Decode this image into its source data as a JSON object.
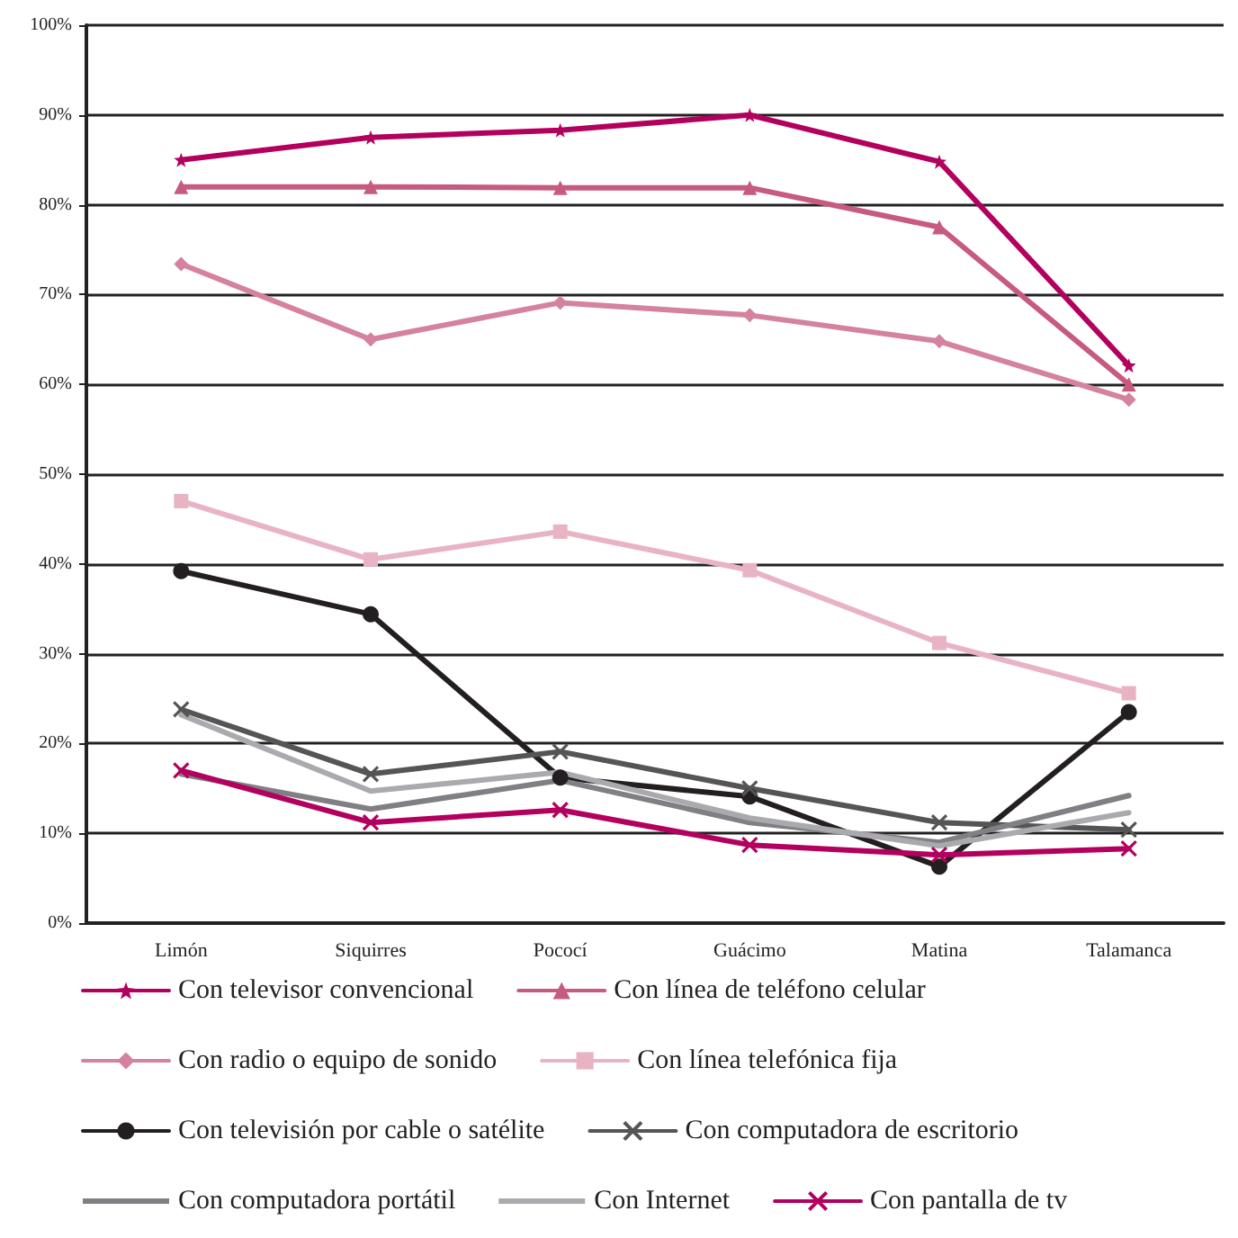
{
  "chart_data": {
    "type": "line",
    "categories": [
      "Limón",
      "Siquirres",
      "Pococí",
      "Guácimo",
      "Matina",
      "Talamanca"
    ],
    "ylim": [
      0,
      100
    ],
    "yticks": [
      {
        "value": 0,
        "label": "0%"
      },
      {
        "value": 10,
        "label": "10%"
      },
      {
        "value": 20,
        "label": "20%"
      },
      {
        "value": 30,
        "label": "30%"
      },
      {
        "value": 40,
        "label": "40%"
      },
      {
        "value": 50,
        "label": "50%"
      },
      {
        "value": 60,
        "label": "60%"
      },
      {
        "value": 70,
        "label": "70%"
      },
      {
        "value": 80,
        "label": "80%"
      },
      {
        "value": 90,
        "label": "90%"
      },
      {
        "value": 100,
        "label": "100%"
      }
    ],
    "grid": "y",
    "legend": "bottom",
    "line_style": "solid",
    "series": [
      {
        "name": "Con televisor convencional",
        "color": "#b3005e",
        "marker": "star",
        "values": [
          85.0,
          87.5,
          88.3,
          90.0,
          84.8,
          62.1
        ]
      },
      {
        "name": "Con línea de teléfono celular",
        "color": "#c75a80",
        "marker": "triangle",
        "values": [
          82.0,
          82.0,
          81.9,
          81.9,
          77.5,
          60.0
        ]
      },
      {
        "name": "Con radio o equipo de sonido",
        "color": "#d4829f",
        "marker": "diamond",
        "values": [
          73.4,
          65.0,
          69.1,
          67.7,
          64.8,
          58.3
        ]
      },
      {
        "name": "Con línea telefónica fija",
        "color": "#e8b4c4",
        "marker": "square",
        "values": [
          47.0,
          40.5,
          43.6,
          39.3,
          31.2,
          25.6
        ]
      },
      {
        "name": "Con televisión por cable o satélite",
        "color": "#231f20",
        "marker": "circle",
        "values": [
          39.2,
          34.4,
          16.2,
          14.1,
          6.3,
          23.5
        ]
      },
      {
        "name": "Con computadora de escritorio",
        "color": "#555555",
        "marker": "cross",
        "values": [
          23.8,
          16.6,
          19.1,
          15.0,
          11.2,
          10.4
        ]
      },
      {
        "name": "Con computadora portátil",
        "color": "#7f7f84",
        "marker": "none",
        "values": [
          16.6,
          12.7,
          15.9,
          11.2,
          9.0,
          14.2
        ]
      },
      {
        "name": "Con Internet",
        "color": "#aaa9ad",
        "marker": "none",
        "values": [
          23.2,
          14.7,
          16.8,
          11.7,
          8.6,
          12.3
        ]
      },
      {
        "name": "Con pantalla de tv",
        "color": "#b3005e",
        "marker": "cross",
        "values": [
          17.0,
          11.2,
          12.6,
          8.7,
          7.6,
          8.3
        ]
      }
    ]
  }
}
